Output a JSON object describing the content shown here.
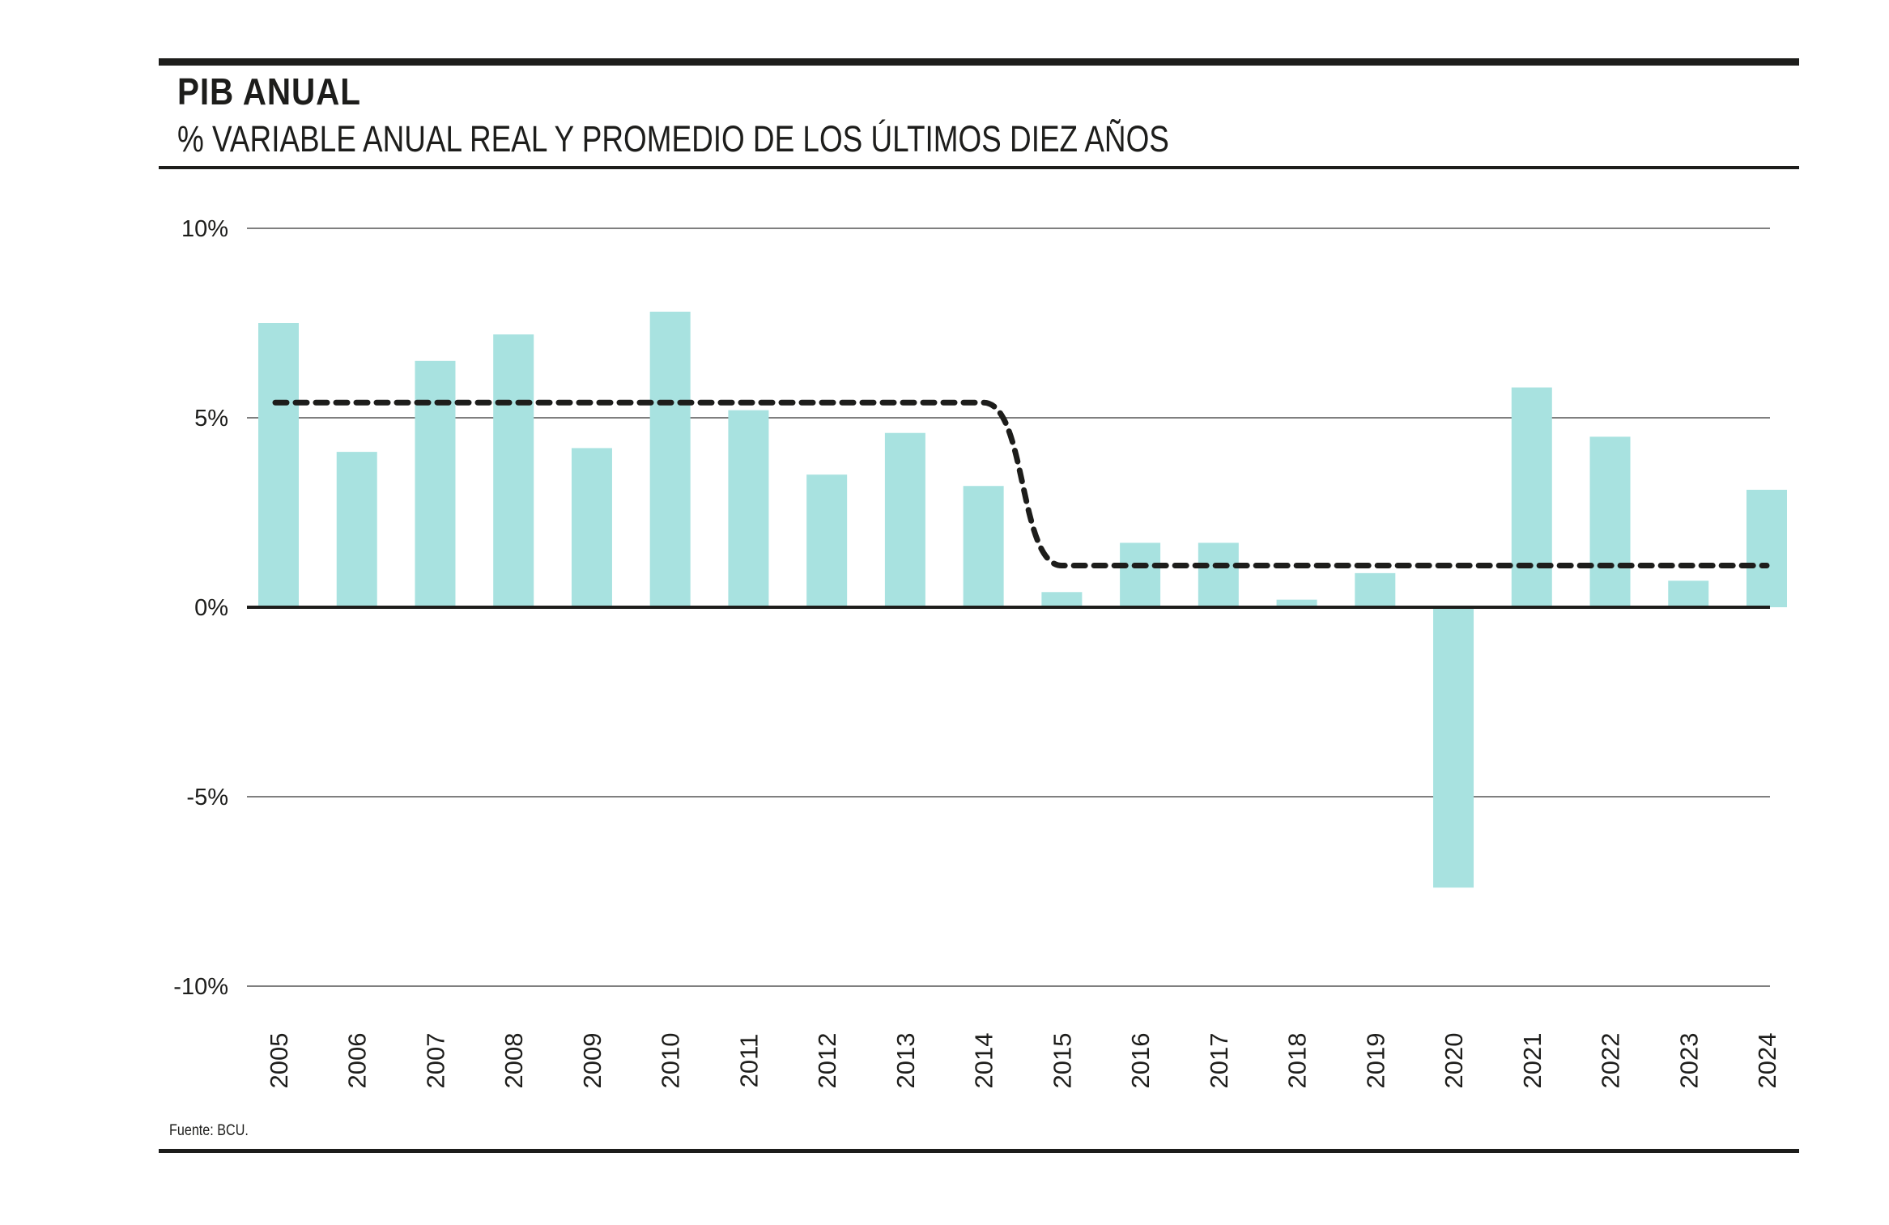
{
  "header": {
    "title": "PIB ANUAL",
    "subtitle": "% VARIABLE ANUAL REAL Y PROMEDIO DE LOS ÚLTIMOS DIEZ AÑOS"
  },
  "footer": {
    "source": "Fuente: BCU."
  },
  "colors": {
    "bar": "#a8e2e0",
    "average_line": "#1d1d1b",
    "grid": "#555555",
    "zero_line": "#1d1d1b"
  },
  "chart_data": {
    "type": "bar",
    "title": "PIB ANUAL",
    "subtitle": "% VARIABLE ANUAL REAL Y PROMEDIO DE LOS ÚLTIMOS DIEZ AÑOS",
    "xlabel": "",
    "ylabel": "",
    "ylim": [
      -10,
      10
    ],
    "yticks": [
      10,
      5,
      0,
      -5,
      -10
    ],
    "ytick_labels": [
      "10%",
      "5%",
      "0%",
      "-5%",
      "-10%"
    ],
    "grid": true,
    "legend": "none",
    "categories": [
      "2005",
      "2006",
      "2007",
      "2008",
      "2009",
      "2010",
      "2011",
      "2012",
      "2013",
      "2014",
      "2015",
      "2016",
      "2017",
      "2018",
      "2019",
      "2020",
      "2021",
      "2022",
      "2023",
      "2024"
    ],
    "series": [
      {
        "kind": "bar",
        "values": [
          7.5,
          4.1,
          6.5,
          7.2,
          4.2,
          7.8,
          5.2,
          3.5,
          4.6,
          3.2,
          0.4,
          1.7,
          1.7,
          0.2,
          0.9,
          -7.4,
          5.8,
          4.5,
          0.7,
          3.1
        ]
      },
      {
        "kind": "line",
        "style": "dashed",
        "values": [
          5.4,
          5.4,
          5.4,
          5.4,
          5.4,
          5.4,
          5.4,
          5.4,
          5.4,
          5.4,
          1.1,
          1.1,
          1.1,
          1.1,
          1.1,
          1.1,
          1.1,
          1.1,
          1.1,
          1.1
        ]
      }
    ]
  }
}
